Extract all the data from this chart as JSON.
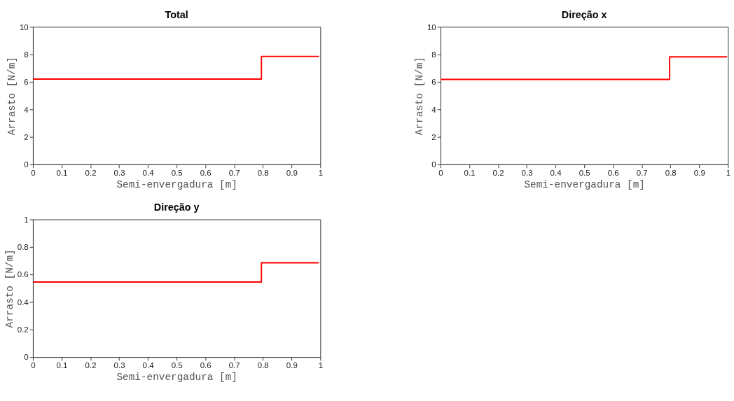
{
  "chart_data": [
    {
      "type": "step",
      "title": "Total",
      "xlabel": "Semi-envergadura [m]",
      "ylabel": "Arrasto [N/m]",
      "x": [
        0,
        0.795,
        0.995
      ],
      "series": [
        {
          "color": "#ff0000",
          "values": [
            6.2,
            7.85,
            7.85
          ]
        }
      ],
      "xlim": [
        0,
        1
      ],
      "xticks": [
        0,
        0.1,
        0.2,
        0.3,
        0.4,
        0.5,
        0.6,
        0.7,
        0.8,
        0.9,
        1
      ],
      "ylim": [
        0,
        10
      ],
      "yticks": [
        0,
        2,
        4,
        6,
        8,
        10
      ],
      "grid": false
    },
    {
      "type": "step",
      "title": "Direção x",
      "xlabel": "Semi-envergadura [m]",
      "ylabel": "Arrasto [N/m]",
      "x": [
        0,
        0.797,
        0.997
      ],
      "series": [
        {
          "color": "#ff0000",
          "values": [
            6.18,
            7.82,
            7.82
          ]
        }
      ],
      "xlim": [
        0,
        1
      ],
      "xticks": [
        0,
        0.1,
        0.2,
        0.3,
        0.4,
        0.5,
        0.6,
        0.7,
        0.8,
        0.9,
        1
      ],
      "ylim": [
        0,
        10
      ],
      "yticks": [
        0,
        2,
        4,
        6,
        8,
        10
      ],
      "grid": false
    },
    {
      "type": "step",
      "title": "Direção y",
      "xlabel": "Semi-envergadura [m]",
      "ylabel": "Arrasto [N/m]",
      "x": [
        0,
        0.795,
        0.995
      ],
      "series": [
        {
          "color": "#ff0000",
          "values": [
            0.545,
            0.685,
            0.685
          ]
        }
      ],
      "xlim": [
        0,
        1
      ],
      "xticks": [
        0,
        0.1,
        0.2,
        0.3,
        0.4,
        0.5,
        0.6,
        0.7,
        0.8,
        0.9,
        1
      ],
      "ylim": [
        0,
        1
      ],
      "yticks": [
        0,
        0.2,
        0.4,
        0.6,
        0.8,
        1
      ],
      "grid": false
    }
  ]
}
